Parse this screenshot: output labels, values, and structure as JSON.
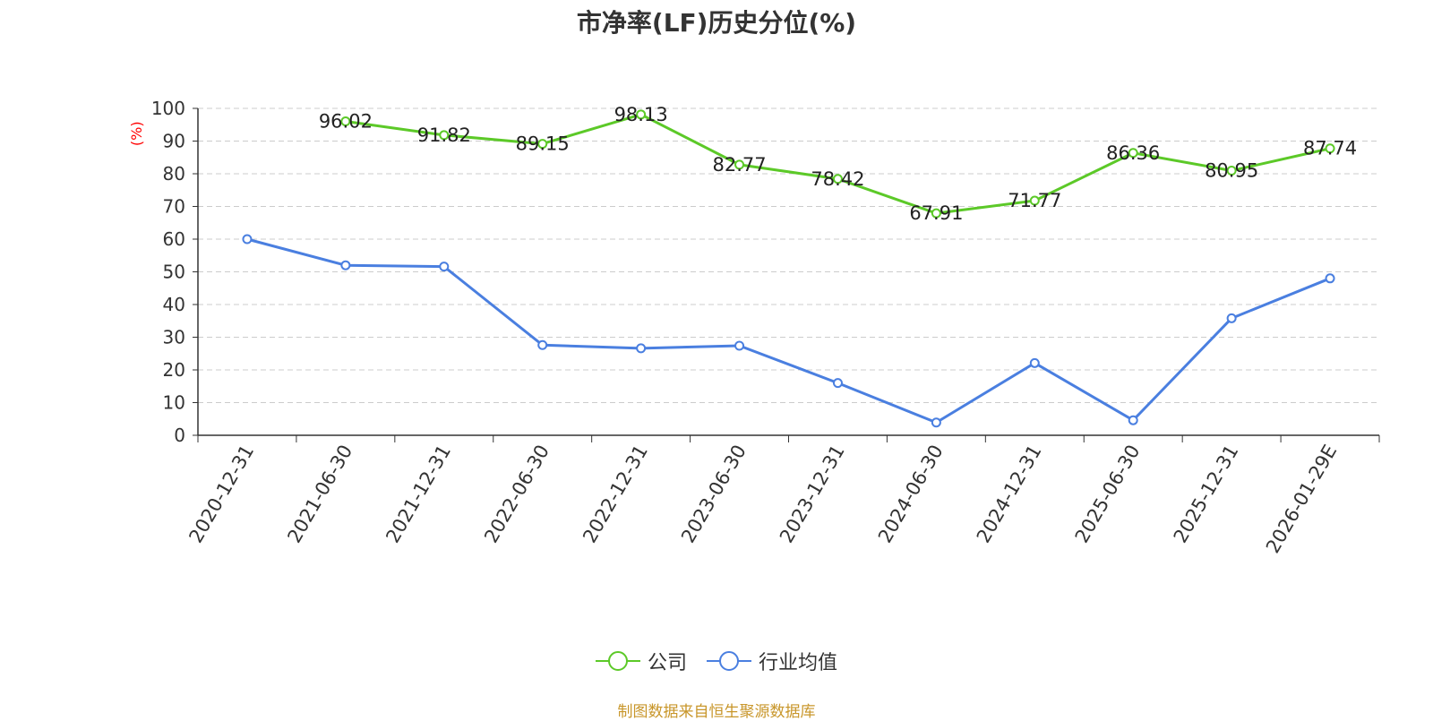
{
  "title": "市净率(LF)历史分位(%)",
  "source_note": "制图数据来自恒生聚源数据库",
  "colors": {
    "company": "#5cc928",
    "industry": "#4a7fe0",
    "ylabel": "#ff0000"
  },
  "chart_data": {
    "type": "line",
    "title": "市净率(LF)历史分位(%)",
    "xlabel": "",
    "ylabel": "(%)",
    "ylim": [
      0,
      100
    ],
    "yticks": [
      0,
      10,
      20,
      30,
      40,
      50,
      60,
      70,
      80,
      90,
      100
    ],
    "grid": true,
    "legend_position": "bottom",
    "categories": [
      "2020-12-31",
      "2021-06-30",
      "2021-12-31",
      "2022-06-30",
      "2022-12-31",
      "2023-06-30",
      "2023-12-31",
      "2024-06-30",
      "2024-12-31",
      "2025-06-30",
      "2025-12-31",
      "2026-01-29E"
    ],
    "series": [
      {
        "name": "公司",
        "values": [
          null,
          96.02,
          91.82,
          89.15,
          98.13,
          82.77,
          78.42,
          67.91,
          71.77,
          86.36,
          80.95,
          87.74
        ],
        "labels": true
      },
      {
        "name": "行业均值",
        "values": [
          60.0,
          52.0,
          51.6,
          27.6,
          26.6,
          27.4,
          16.0,
          3.9,
          22.1,
          4.6,
          35.8,
          48.0
        ],
        "labels": false
      }
    ]
  }
}
